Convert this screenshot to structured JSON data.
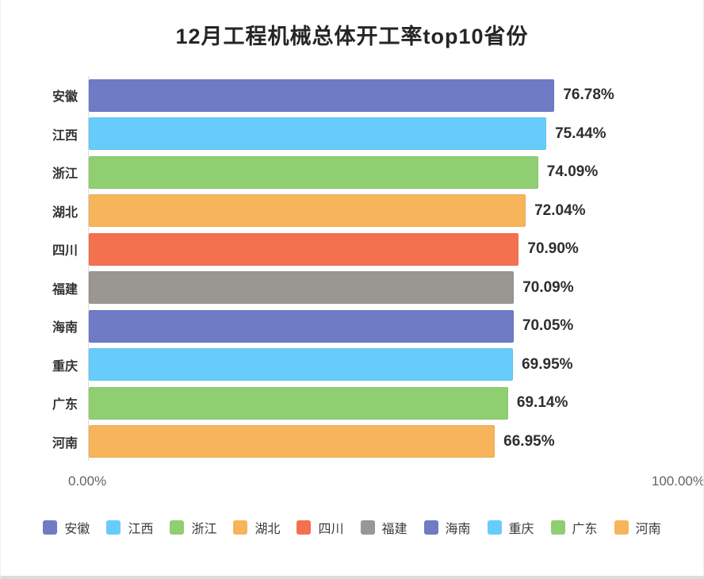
{
  "chart_data": {
    "type": "bar",
    "orientation": "horizontal",
    "title": "12月工程机械总体开工率top10省份",
    "categories": [
      "安徽",
      "江西",
      "浙江",
      "湖北",
      "四川",
      "福建",
      "海南",
      "重庆",
      "广东",
      "河南"
    ],
    "values": [
      76.78,
      75.44,
      74.09,
      72.04,
      70.9,
      70.09,
      70.05,
      69.95,
      69.14,
      66.95
    ],
    "value_labels": [
      "76.78%",
      "75.44%",
      "74.09%",
      "72.04%",
      "70.90%",
      "70.09%",
      "70.05%",
      "69.95%",
      "69.14%",
      "66.95%"
    ],
    "x_axis": {
      "min": 0,
      "max": 100,
      "min_label": "0.00%",
      "max_label": "100.00%"
    },
    "grid": false,
    "legend_position": "bottom",
    "legend": [
      "安徽",
      "江西",
      "浙江",
      "湖北",
      "四川",
      "福建",
      "海南",
      "重庆",
      "广东",
      "河南"
    ],
    "palette": [
      "#6F7BC5",
      "#67CCFA",
      "#90CE72",
      "#F7B45A",
      "#F4714F",
      "#9A9691"
    ],
    "text_colors": {
      "title": "#252525",
      "category_label": "#333333",
      "value_label": "#2e2e2e",
      "axis_label": "#636363",
      "legend_label": "#3a3a3a"
    }
  }
}
